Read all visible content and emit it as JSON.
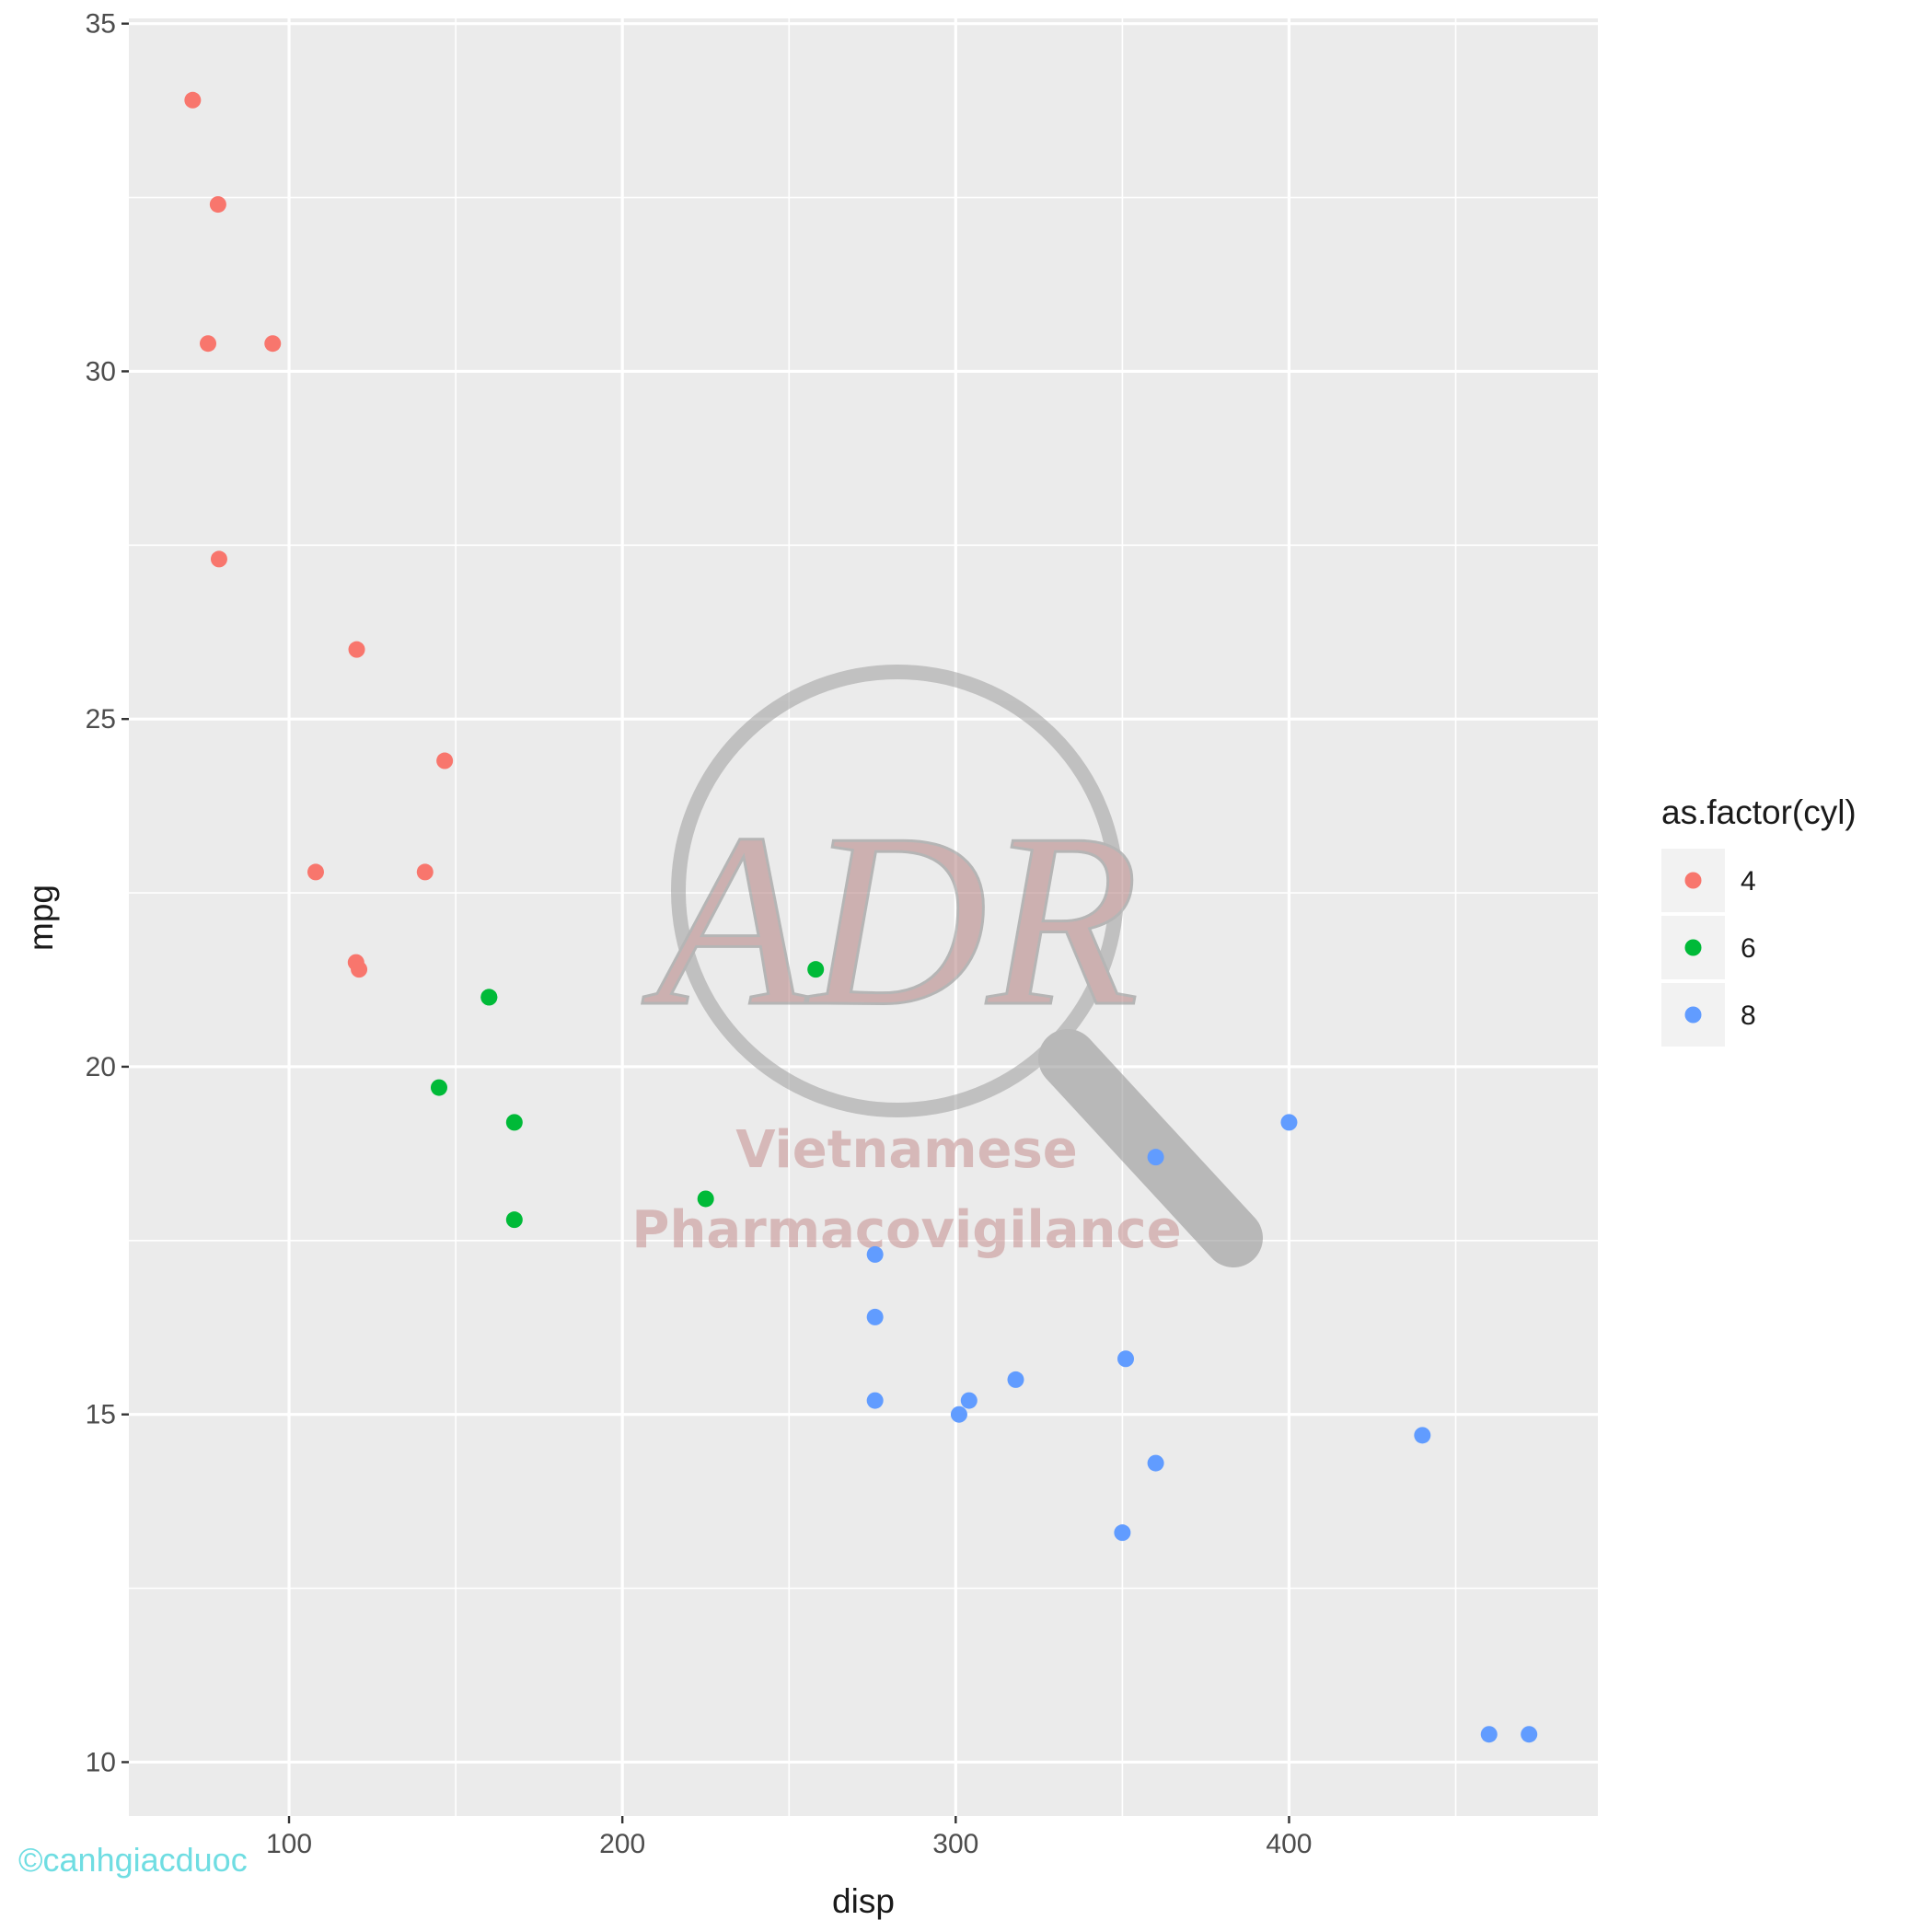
{
  "credit": "©canhgiacduoc",
  "watermark": {
    "logo_text": "ADR",
    "line1": "Vietnamese",
    "line2": "Pharmacovigilance"
  },
  "colors": {
    "panel": "#ebebeb",
    "grid": "#ffffff",
    "cyl4": "#f8766d",
    "cyl6": "#00ba38",
    "cyl8": "#619cff"
  },
  "chart_data": {
    "type": "scatter",
    "xlabel": "disp",
    "ylabel": "mpg",
    "xlim": [
      51.95,
      492.65
    ],
    "ylim": [
      9.225,
      35.075
    ],
    "x_ticks": [
      100,
      200,
      300,
      400
    ],
    "y_ticks": [
      10,
      15,
      20,
      25,
      30,
      35
    ],
    "grid": true,
    "legend": {
      "title": "as.factor(cyl)",
      "position": "right"
    },
    "series": [
      {
        "name": "4",
        "color": "#f8766d",
        "points": [
          [
            108,
            22.8
          ],
          [
            146.7,
            24.4
          ],
          [
            140.8,
            22.8
          ],
          [
            78.7,
            32.4
          ],
          [
            75.7,
            30.4
          ],
          [
            71.1,
            33.9
          ],
          [
            120.1,
            21.5
          ],
          [
            79,
            27.3
          ],
          [
            120.3,
            26
          ],
          [
            95.1,
            30.4
          ],
          [
            121,
            21.4
          ]
        ]
      },
      {
        "name": "6",
        "color": "#00ba38",
        "points": [
          [
            160,
            21
          ],
          [
            160,
            21
          ],
          [
            258,
            21.4
          ],
          [
            225,
            18.1
          ],
          [
            167.6,
            19.2
          ],
          [
            167.6,
            17.8
          ],
          [
            145,
            19.7
          ]
        ]
      },
      {
        "name": "8",
        "color": "#619cff",
        "points": [
          [
            360,
            18.7
          ],
          [
            360,
            14.3
          ],
          [
            275.8,
            16.4
          ],
          [
            275.8,
            17.3
          ],
          [
            275.8,
            15.2
          ],
          [
            472,
            10.4
          ],
          [
            460,
            10.4
          ],
          [
            440,
            14.7
          ],
          [
            318,
            15.5
          ],
          [
            304,
            15.2
          ],
          [
            350,
            13.3
          ],
          [
            400,
            19.2
          ],
          [
            351,
            15.8
          ],
          [
            301,
            15
          ]
        ]
      }
    ]
  }
}
